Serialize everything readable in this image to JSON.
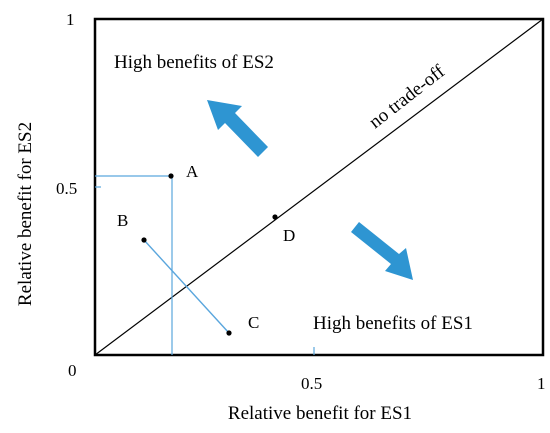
{
  "diagram": {
    "xlabel": "Relative benefit for ES1",
    "ylabel": "Relative benefit for ES2",
    "ticks": {
      "x_origin": "0",
      "x_mid": "0.5",
      "x_end": "1",
      "y_mid": "0.5",
      "y_end": "1"
    },
    "region_es2_label": "High benefits of ES2",
    "region_es1_label": "High benefits of ES1",
    "diagonal_label": "no trade-off",
    "points": [
      {
        "label": "A",
        "x": 0.205,
        "y": 0.545
      },
      {
        "label": "B",
        "x": 0.13,
        "y": 0.345
      },
      {
        "label": "C",
        "x": 0.32,
        "y": 0.075
      },
      {
        "label": "D",
        "x": 0.42,
        "y": 0.42
      }
    ],
    "colors": {
      "frame": "#000000",
      "arrow": "#2e95d2",
      "guide_line": "#5aa6dd"
    }
  }
}
